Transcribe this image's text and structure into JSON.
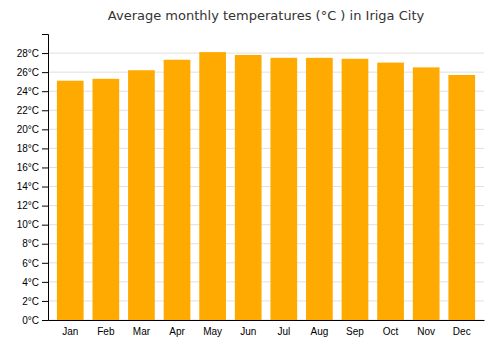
{
  "chart_data": {
    "type": "bar",
    "title": "Average monthly temperatures (°C ) in Iriga City",
    "categories": [
      "Jan",
      "Feb",
      "Mar",
      "Apr",
      "May",
      "Jun",
      "Jul",
      "Aug",
      "Sep",
      "Oct",
      "Nov",
      "Dec"
    ],
    "values": [
      25.1,
      25.3,
      26.2,
      27.3,
      28.1,
      27.8,
      27.5,
      27.5,
      27.4,
      27.0,
      26.5,
      25.7
    ],
    "color": "#FFAA00",
    "ylim": [
      0,
      30
    ],
    "yticks": [
      {
        "value": 0,
        "label": "0°C"
      },
      {
        "value": 2,
        "label": "2°C"
      },
      {
        "value": 4,
        "label": "4°C"
      },
      {
        "value": 6,
        "label": "6°C"
      },
      {
        "value": 8,
        "label": "8°C"
      },
      {
        "value": 10,
        "label": "10°C"
      },
      {
        "value": 12,
        "label": "12°C"
      },
      {
        "value": 14,
        "label": "14°C"
      },
      {
        "value": 16,
        "label": "16°C"
      },
      {
        "value": 18,
        "label": "18°C"
      },
      {
        "value": 20,
        "label": "20°C"
      },
      {
        "value": 22,
        "label": "22°C"
      },
      {
        "value": 24,
        "label": "24°C"
      },
      {
        "value": 26,
        "label": "26°C"
      },
      {
        "value": 28,
        "label": "28°C"
      }
    ],
    "grid": true
  }
}
